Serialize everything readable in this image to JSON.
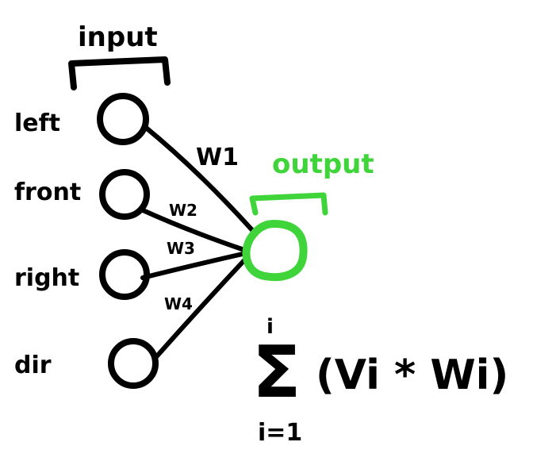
{
  "diagram": {
    "input_label": "input",
    "output_label": "output",
    "input_nodes": [
      {
        "label": "left"
      },
      {
        "label": "front"
      },
      {
        "label": "right"
      },
      {
        "label": "dir"
      }
    ],
    "weights": [
      "W1",
      "W2",
      "W3",
      "W4"
    ],
    "formula": {
      "upper": "i",
      "sigma": "Σ",
      "lower": "i=1",
      "body": "(Vi * Wi)"
    },
    "colors": {
      "ink": "#000000",
      "output": "#3fd43a"
    }
  }
}
